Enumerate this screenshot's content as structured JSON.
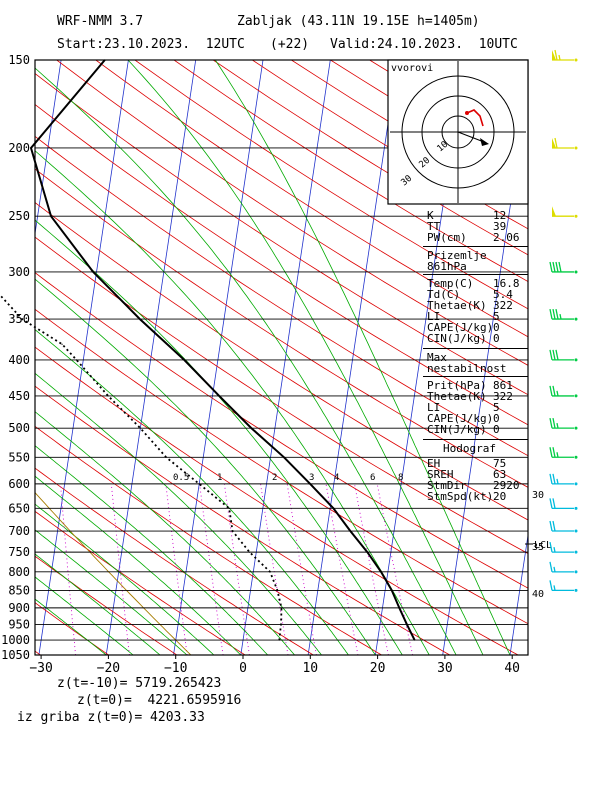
{
  "header": {
    "model": "WRF-NMM 3.7",
    "station": "Zabljak (43.11N 19.15E  h=1405m)",
    "start": "Start:23.10.2023.  12UTC",
    "lead": "(+22)",
    "valid": "Valid:24.10.2023.  10UTC"
  },
  "chart_data": {
    "type": "line",
    "title": "",
    "xlabel": "",
    "ylabel": "",
    "xlim": [
      -30,
      40
    ],
    "pressure_range_hPa": [
      1050,
      150
    ],
    "y_scale": "log-pressure",
    "x_ticks": [
      "−30",
      "−20",
      "−10",
      "0",
      "10",
      "20",
      "30",
      "40"
    ],
    "y_ticks": [
      "150",
      "200",
      "250",
      "300",
      "350",
      "400",
      "450",
      "500",
      "550",
      "600",
      "650",
      "700",
      "750",
      "800",
      "850",
      "900",
      "950",
      "1000",
      "1050"
    ],
    "mixing_ratio_labels": [
      "0.5",
      "1",
      "2",
      "3",
      "4",
      "6",
      "8"
    ],
    "lcl_label": "LCL",
    "right_axis_labels": [
      "30",
      "35",
      "40"
    ],
    "colors": {
      "isotherm": "#cc0000",
      "dry_adiabat": "#00aa00",
      "skewed_isotherm": "#0000cc",
      "mixing_ratio": "#cc00cc",
      "wet_adiabat": "#996600",
      "wind_upper": "#dddd00",
      "wind_mid": "#00cc44",
      "wind_low": "#00bbdd"
    },
    "series": [
      {
        "name": "",
        "style": "solid",
        "points": [
          [
            150,
            -33.5
          ],
          [
            200,
            -42.5
          ],
          [
            250,
            -38
          ],
          [
            300,
            -30.5
          ],
          [
            350,
            -22.5
          ],
          [
            400,
            -15
          ],
          [
            450,
            -9
          ],
          [
            500,
            -3.5
          ],
          [
            550,
            2
          ],
          [
            600,
            6.5
          ],
          [
            650,
            10.5
          ],
          [
            700,
            13.5
          ],
          [
            750,
            16.5
          ],
          [
            800,
            19
          ],
          [
            850,
            21
          ],
          [
            900,
            22.5
          ],
          [
            950,
            24
          ],
          [
            1000,
            25.5
          ]
        ]
      },
      {
        "name": "",
        "style": "dotted",
        "points": [
          [
            150,
            -55
          ],
          [
            200,
            -68
          ],
          [
            220,
            -63
          ],
          [
            250,
            -55
          ],
          [
            280,
            -50
          ],
          [
            300,
            -47.5
          ],
          [
            350,
            -40
          ],
          [
            380,
            -33.5
          ],
          [
            400,
            -31
          ],
          [
            450,
            -25.5
          ],
          [
            500,
            -20
          ],
          [
            550,
            -15.5
          ],
          [
            600,
            -10
          ],
          [
            650,
            -5
          ],
          [
            700,
            -4
          ],
          [
            750,
            -1
          ],
          [
            800,
            2.5
          ],
          [
            850,
            4
          ],
          [
            900,
            5
          ],
          [
            950,
            5.3
          ],
          [
            1000,
            5.4
          ]
        ]
      }
    ],
    "winds": [
      {
        "p": 150,
        "dir": 270,
        "spd": 65
      },
      {
        "p": 200,
        "dir": 270,
        "spd": 60
      },
      {
        "p": 250,
        "dir": 270,
        "spd": 50
      },
      {
        "p": 300,
        "dir": 270,
        "spd": 40
      },
      {
        "p": 350,
        "dir": 270,
        "spd": 35
      },
      {
        "p": 400,
        "dir": 270,
        "spd": 30
      },
      {
        "p": 450,
        "dir": 270,
        "spd": 25
      },
      {
        "p": 500,
        "dir": 270,
        "spd": 25
      },
      {
        "p": 550,
        "dir": 270,
        "spd": 25
      },
      {
        "p": 600,
        "dir": 280,
        "spd": 25
      },
      {
        "p": 650,
        "dir": 290,
        "spd": 20
      },
      {
        "p": 700,
        "dir": 290,
        "spd": 20
      },
      {
        "p": 750,
        "dir": 300,
        "spd": 15
      },
      {
        "p": 800,
        "dir": 310,
        "spd": 15
      },
      {
        "p": 850,
        "dir": 320,
        "spd": 15
      }
    ],
    "hodograph": {
      "title": "vvorovi",
      "ring_labels": [
        "10",
        "20",
        "30"
      ]
    }
  },
  "indices": {
    "block1": [
      [
        "K",
        "12"
      ],
      [
        "TT",
        "39"
      ],
      [
        "PW(cm)",
        "2.06"
      ]
    ],
    "block2_title": "Prizemlje 861hPa",
    "block2": [
      [
        "Temp(C)",
        "16.8"
      ],
      [
        "Td(C)",
        "5.4"
      ],
      [
        "Thetae(K)",
        "322"
      ],
      [
        "LI",
        "5"
      ],
      [
        "CAPE(J/kg)",
        "0"
      ],
      [
        "CIN(J/kg)",
        "0"
      ]
    ],
    "block3_title": "Max nestabilnost",
    "block3": [
      [
        "Prit(hPa)",
        "861"
      ],
      [
        "Thetae(K)",
        "322"
      ],
      [
        "LI",
        "5"
      ],
      [
        "CAPE(J/kg)",
        "0"
      ],
      [
        "CIN(J/kg)",
        "0"
      ]
    ],
    "block4_title": "Hodograf",
    "block4": [
      [
        "EH",
        "75"
      ],
      [
        "SREH",
        "63"
      ],
      [
        "StmDir",
        "2920"
      ],
      [
        "StmSpd(kt)",
        "20"
      ]
    ]
  },
  "footer": {
    "line1": "z(t=-10)= 5719.265423",
    "line2": "z(t=0)=  4221.6595916",
    "line3": "iz griba z(t=0)= 4203.33"
  }
}
